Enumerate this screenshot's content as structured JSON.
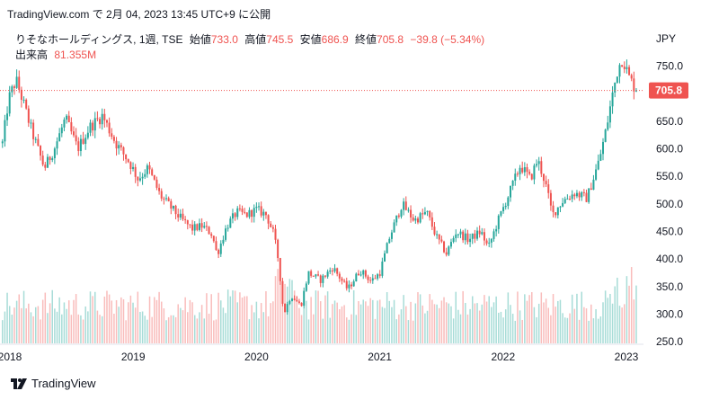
{
  "header": {
    "source_line": "TradingView.com で 2月 04, 2023 13:45 UTC+9 に公開"
  },
  "legend": {
    "symbol_line": "りそなホールディングス, 1週, TSE",
    "open_label": "始値",
    "open_value": "733.0",
    "high_label": "高値",
    "high_value": "745.5",
    "low_label": "安値",
    "low_value": "686.9",
    "close_label": "終値",
    "close_value": "705.8",
    "change": "−39.8 (−5.34%)",
    "volume_label": "出来高",
    "volume_value": "81.355M"
  },
  "currency_label": "JPY",
  "footer": {
    "brand": "TradingView"
  },
  "colors": {
    "up": "#26a69a",
    "down": "#ef5350",
    "up_volume": "#a7dcd7",
    "down_volume": "#f9bcbb",
    "price_line": "#ef5350"
  },
  "chart_data": {
    "type": "candlestick",
    "interval": "1 week",
    "x_tick_labels": [
      "2018",
      "2019",
      "2020",
      "2021",
      "2022",
      "2023"
    ],
    "y_tick_labels": [
      "250.0",
      "300.0",
      "350.0",
      "400.0",
      "450.0",
      "500.0",
      "550.0",
      "600.0",
      "650.0",
      "700.0",
      "750.0"
    ],
    "ylim": [
      245,
      770
    ],
    "last_price_label": "705.8",
    "last_price": 705.8,
    "anchors": [
      {
        "t": 2017.94,
        "p": 610
      },
      {
        "t": 2017.99,
        "p": 690
      },
      {
        "t": 2018.05,
        "p": 725
      },
      {
        "t": 2018.1,
        "p": 690
      },
      {
        "t": 2018.18,
        "p": 630
      },
      {
        "t": 2018.28,
        "p": 565
      },
      {
        "t": 2018.36,
        "p": 600
      },
      {
        "t": 2018.45,
        "p": 655
      },
      {
        "t": 2018.55,
        "p": 600
      },
      {
        "t": 2018.65,
        "p": 640
      },
      {
        "t": 2018.75,
        "p": 660
      },
      {
        "t": 2018.86,
        "p": 610
      },
      {
        "t": 2018.97,
        "p": 575
      },
      {
        "t": 2019.04,
        "p": 545
      },
      {
        "t": 2019.12,
        "p": 565
      },
      {
        "t": 2019.22,
        "p": 515
      },
      {
        "t": 2019.32,
        "p": 490
      },
      {
        "t": 2019.4,
        "p": 470
      },
      {
        "t": 2019.48,
        "p": 455
      },
      {
        "t": 2019.56,
        "p": 460
      },
      {
        "t": 2019.64,
        "p": 445
      },
      {
        "t": 2019.68,
        "p": 408
      },
      {
        "t": 2019.76,
        "p": 460
      },
      {
        "t": 2019.84,
        "p": 485
      },
      {
        "t": 2019.92,
        "p": 480
      },
      {
        "t": 2020.0,
        "p": 490
      },
      {
        "t": 2020.08,
        "p": 480
      },
      {
        "t": 2020.14,
        "p": 445
      },
      {
        "t": 2020.18,
        "p": 395
      },
      {
        "t": 2020.22,
        "p": 300
      },
      {
        "t": 2020.28,
        "p": 335
      },
      {
        "t": 2020.36,
        "p": 315
      },
      {
        "t": 2020.42,
        "p": 375
      },
      {
        "t": 2020.52,
        "p": 362
      },
      {
        "t": 2020.62,
        "p": 385
      },
      {
        "t": 2020.74,
        "p": 345
      },
      {
        "t": 2020.84,
        "p": 380
      },
      {
        "t": 2020.93,
        "p": 360
      },
      {
        "t": 2021.0,
        "p": 375
      },
      {
        "t": 2021.08,
        "p": 440
      },
      {
        "t": 2021.18,
        "p": 500
      },
      {
        "t": 2021.28,
        "p": 470
      },
      {
        "t": 2021.38,
        "p": 485
      },
      {
        "t": 2021.46,
        "p": 440
      },
      {
        "t": 2021.54,
        "p": 410
      },
      {
        "t": 2021.62,
        "p": 450
      },
      {
        "t": 2021.72,
        "p": 435
      },
      {
        "t": 2021.82,
        "p": 450
      },
      {
        "t": 2021.88,
        "p": 420
      },
      {
        "t": 2021.96,
        "p": 470
      },
      {
        "t": 2022.06,
        "p": 525
      },
      {
        "t": 2022.14,
        "p": 570
      },
      {
        "t": 2022.22,
        "p": 545
      },
      {
        "t": 2022.28,
        "p": 580
      },
      {
        "t": 2022.34,
        "p": 540
      },
      {
        "t": 2022.4,
        "p": 480
      },
      {
        "t": 2022.48,
        "p": 505
      },
      {
        "t": 2022.58,
        "p": 520
      },
      {
        "t": 2022.68,
        "p": 510
      },
      {
        "t": 2022.78,
        "p": 580
      },
      {
        "t": 2022.84,
        "p": 640
      },
      {
        "t": 2022.88,
        "p": 690
      },
      {
        "t": 2022.93,
        "p": 745
      },
      {
        "t": 2022.97,
        "p": 765
      },
      {
        "t": 2023.02,
        "p": 730
      },
      {
        "t": 2023.08,
        "p": 706
      }
    ]
  }
}
